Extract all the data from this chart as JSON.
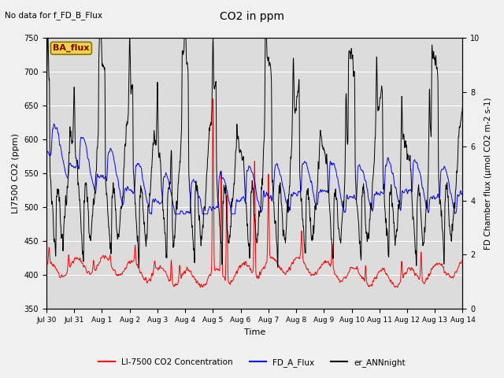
{
  "title": "CO2 in ppm",
  "top_left_text": "No data for f_FD_B_Flux",
  "xlabel": "Time",
  "ylabel_left": "LI7500 CO2 (ppm)",
  "ylabel_right": "FD Chamber flux (μmol CO2 m-2 s-1)",
  "ylim_left": [
    350,
    750
  ],
  "ylim_right": [
    0.0,
    10.0
  ],
  "plot_bg_color": "#dcdcdc",
  "fig_bg_color": "#f0f0f0",
  "ba_flux_box_facecolor": "#e8d44d",
  "ba_flux_box_edgecolor": "#8b7500",
  "ba_flux_text": "BA_flux",
  "ba_flux_text_color": "#8b0000",
  "legend_labels": [
    "LI-7500 CO2 Concentration",
    "FD_A_Flux",
    "er_ANNnight"
  ],
  "legend_colors": [
    "#ff0000",
    "#0000ff",
    "#000000"
  ],
  "x_tick_labels": [
    "Jul 30",
    "Jul 31",
    "Aug 1",
    "Aug 2",
    "Aug 3",
    "Aug 4",
    "Aug 5",
    "Aug 6",
    "Aug 7",
    "Aug 8",
    "Aug 9",
    "Aug 10",
    "Aug 11",
    "Aug 12",
    "Aug 13",
    "Aug 14"
  ],
  "n_days": 15,
  "figsize": [
    6.4,
    4.8
  ],
  "dpi": 100
}
